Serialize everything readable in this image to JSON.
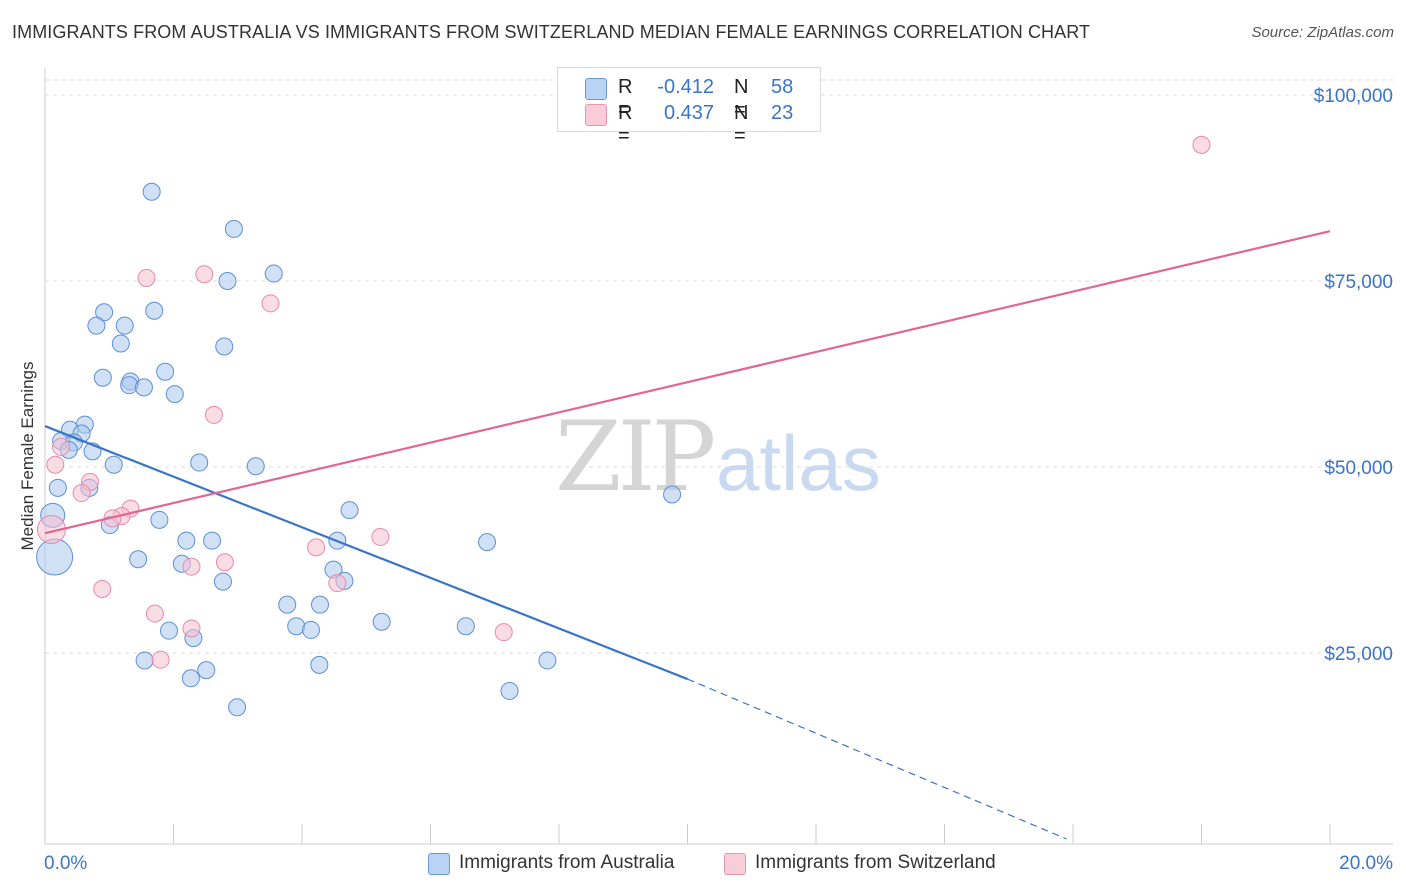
{
  "title": "IMMIGRANTS FROM AUSTRALIA VS IMMIGRANTS FROM SWITZERLAND MEDIAN FEMALE EARNINGS CORRELATION CHART",
  "source": "Source: ZipAtlas.com",
  "watermark": {
    "zip": "ZIP",
    "atlas": "atlas"
  },
  "legend": {
    "rows": [
      {
        "r_label": "R =",
        "r_value": "-0.412",
        "n_label": "N =",
        "n_value": "58"
      },
      {
        "r_label": "R =",
        "r_value": "0.437",
        "n_label": "N =",
        "n_value": "23"
      }
    ]
  },
  "colors": {
    "blue": "#3a74c8",
    "blue_fill": "#a9c8ef",
    "blue_stroke": "#5d8fd6",
    "pink": "#e0688f",
    "pink_fill": "#f6bfd0",
    "pink_stroke": "#e88aa8",
    "tick_label": "#3a74c8",
    "grid": "#dddddd"
  },
  "chart_data": {
    "type": "scatter",
    "title": "IMMIGRANTS FROM AUSTRALIA VS IMMIGRANTS FROM SWITZERLAND MEDIAN FEMALE EARNINGS CORRELATION CHART",
    "xlabel": "",
    "ylabel": "Median Female Earnings",
    "xlim": [
      0,
      20
    ],
    "ylim": [
      0,
      105000
    ],
    "x_tick_labels": [
      "0.0%",
      "20.0%"
    ],
    "y_ticks": [
      {
        "value": 25000,
        "label": "$25,000"
      },
      {
        "value": 50000,
        "label": "$50,000"
      },
      {
        "value": 75000,
        "label": "$75,000"
      },
      {
        "value": 100000,
        "label": "$100,000"
      }
    ],
    "series": [
      {
        "name": "Immigrants from Australia",
        "color": "blue",
        "trend": {
          "x0": 0.0,
          "y0": 55500,
          "x1": 10.0,
          "y1": 21500,
          "dashed_to_x": 15.9,
          "dashed_to_y": 0
        },
        "points": [
          {
            "x": 1.66,
            "y": 87000
          },
          {
            "x": 2.94,
            "y": 82000
          },
          {
            "x": 3.56,
            "y": 76000
          },
          {
            "x": 2.84,
            "y": 75000
          },
          {
            "x": 1.7,
            "y": 71000
          },
          {
            "x": 0.92,
            "y": 70800
          },
          {
            "x": 0.8,
            "y": 69000
          },
          {
            "x": 1.24,
            "y": 69000
          },
          {
            "x": 1.18,
            "y": 66600
          },
          {
            "x": 2.79,
            "y": 66200
          },
          {
            "x": 1.87,
            "y": 62800
          },
          {
            "x": 0.9,
            "y": 62000
          },
          {
            "x": 1.33,
            "y": 61500
          },
          {
            "x": 1.31,
            "y": 61000
          },
          {
            "x": 1.54,
            "y": 60700
          },
          {
            "x": 2.02,
            "y": 59800
          },
          {
            "x": 0.62,
            "y": 55700
          },
          {
            "x": 0.39,
            "y": 55000
          },
          {
            "x": 0.57,
            "y": 54500
          },
          {
            "x": 0.25,
            "y": 53500
          },
          {
            "x": 0.45,
            "y": 53300
          },
          {
            "x": 0.37,
            "y": 52300
          },
          {
            "x": 0.74,
            "y": 52100
          },
          {
            "x": 2.4,
            "y": 50600
          },
          {
            "x": 3.28,
            "y": 50100
          },
          {
            "x": 1.07,
            "y": 50300
          },
          {
            "x": 0.2,
            "y": 47200
          },
          {
            "x": 0.69,
            "y": 47200
          },
          {
            "x": 9.76,
            "y": 46300
          },
          {
            "x": 4.74,
            "y": 44200
          },
          {
            "x": 0.12,
            "y": 43500
          },
          {
            "x": 1.78,
            "y": 42900
          },
          {
            "x": 1.01,
            "y": 42200
          },
          {
            "x": 2.2,
            "y": 40100
          },
          {
            "x": 2.6,
            "y": 40100
          },
          {
            "x": 4.55,
            "y": 40100
          },
          {
            "x": 6.88,
            "y": 39900
          },
          {
            "x": 0.15,
            "y": 37900
          },
          {
            "x": 1.45,
            "y": 37600
          },
          {
            "x": 2.13,
            "y": 37000
          },
          {
            "x": 4.49,
            "y": 36200
          },
          {
            "x": 2.77,
            "y": 34600
          },
          {
            "x": 4.66,
            "y": 34700
          },
          {
            "x": 3.77,
            "y": 31500
          },
          {
            "x": 4.28,
            "y": 31500
          },
          {
            "x": 5.24,
            "y": 29200
          },
          {
            "x": 3.91,
            "y": 28600
          },
          {
            "x": 6.55,
            "y": 28600
          },
          {
            "x": 4.14,
            "y": 28100
          },
          {
            "x": 1.93,
            "y": 28000
          },
          {
            "x": 2.31,
            "y": 27000
          },
          {
            "x": 7.82,
            "y": 24000
          },
          {
            "x": 1.55,
            "y": 24000
          },
          {
            "x": 4.27,
            "y": 23400
          },
          {
            "x": 2.51,
            "y": 22700
          },
          {
            "x": 2.27,
            "y": 21600
          },
          {
            "x": 7.23,
            "y": 19900
          },
          {
            "x": 2.99,
            "y": 17700
          }
        ]
      },
      {
        "name": "Immigrants from Switzerland",
        "color": "pink",
        "trend": {
          "x0": 0.0,
          "y0": 41100,
          "x1": 20.0,
          "y1": 81700
        },
        "points": [
          {
            "x": 18.0,
            "y": 93300
          },
          {
            "x": 2.48,
            "y": 75900
          },
          {
            "x": 1.58,
            "y": 75400
          },
          {
            "x": 3.51,
            "y": 72000
          },
          {
            "x": 2.63,
            "y": 57000
          },
          {
            "x": 0.25,
            "y": 52700
          },
          {
            "x": 0.16,
            "y": 50300
          },
          {
            "x": 0.7,
            "y": 48000
          },
          {
            "x": 0.57,
            "y": 46500
          },
          {
            "x": 1.33,
            "y": 44400
          },
          {
            "x": 1.19,
            "y": 43400
          },
          {
            "x": 1.05,
            "y": 43100
          },
          {
            "x": 0.1,
            "y": 41600
          },
          {
            "x": 5.22,
            "y": 40600
          },
          {
            "x": 4.22,
            "y": 39200
          },
          {
            "x": 2.8,
            "y": 37200
          },
          {
            "x": 2.28,
            "y": 36600
          },
          {
            "x": 4.55,
            "y": 34400
          },
          {
            "x": 0.89,
            "y": 33600
          },
          {
            "x": 1.71,
            "y": 30300
          },
          {
            "x": 2.28,
            "y": 28300
          },
          {
            "x": 7.14,
            "y": 27800
          },
          {
            "x": 1.8,
            "y": 24100
          }
        ]
      }
    ]
  }
}
